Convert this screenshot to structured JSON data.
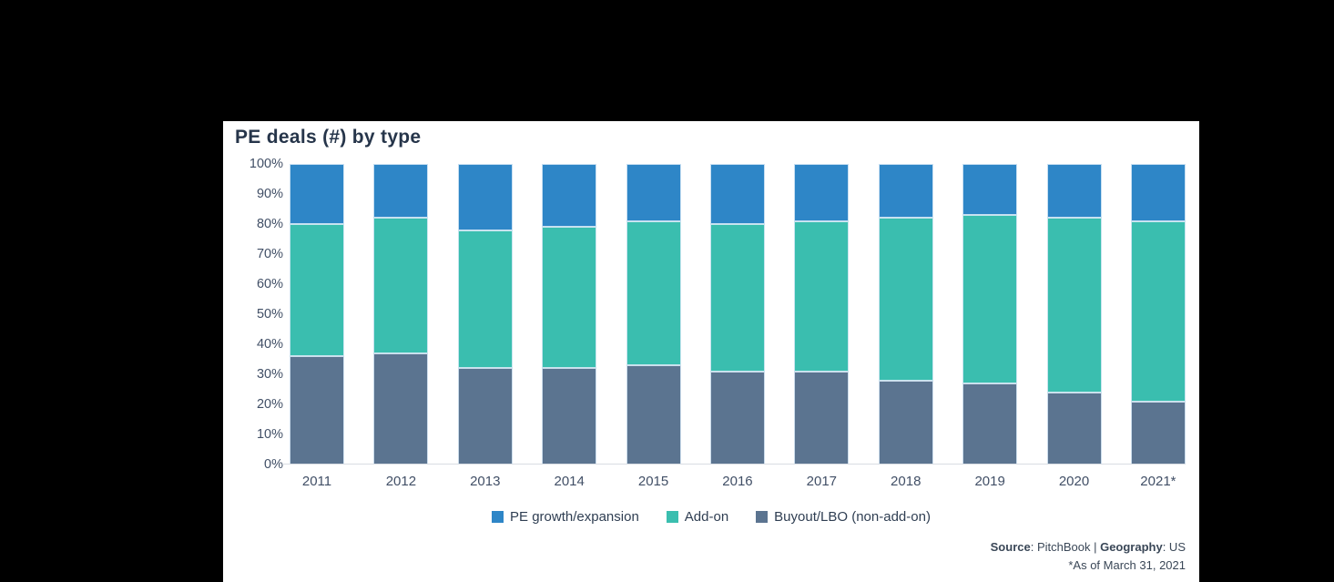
{
  "page": {
    "background_color": "#000000",
    "panel_color": "#FFFFFF"
  },
  "chart_data": {
    "type": "bar",
    "stacked": true,
    "unit": "percent",
    "title": "PE deals (#) by type",
    "categories": [
      "2011",
      "2012",
      "2013",
      "2014",
      "2015",
      "2016",
      "2017",
      "2018",
      "2019",
      "2020",
      "2021*"
    ],
    "series": [
      {
        "name": "Buyout/LBO (non-add-on)",
        "color": "#5B7490",
        "values": [
          36,
          37,
          32,
          32,
          33,
          31,
          31,
          28,
          27,
          24,
          21
        ]
      },
      {
        "name": "Add-on",
        "color": "#3ABEAF",
        "values": [
          44,
          45,
          46,
          47,
          48,
          49,
          50,
          54,
          56,
          58,
          60
        ]
      },
      {
        "name": "PE growth/expansion",
        "color": "#2E86C7",
        "values": [
          20,
          18,
          22,
          21,
          19,
          20,
          19,
          18,
          17,
          18,
          19
        ]
      }
    ],
    "xlabel": "",
    "ylabel": "",
    "ylim": [
      0,
      100
    ],
    "yticks": [
      "0%",
      "10%",
      "20%",
      "30%",
      "40%",
      "50%",
      "60%",
      "70%",
      "80%",
      "90%",
      "100%"
    ],
    "grid": false,
    "legend_position": "bottom"
  },
  "legend": [
    {
      "label": "PE growth/expansion",
      "color": "#2E86C7"
    },
    {
      "label": "Add-on",
      "color": "#3ABEAF"
    },
    {
      "label": "Buyout/LBO (non-add-on)",
      "color": "#5B7490"
    }
  ],
  "footer": {
    "source_label": "Source",
    "source_rest": ": PitchBook | ",
    "geography_label": "Geography",
    "geography_rest": ": US",
    "asof_note": "*As of March 31, 2021"
  }
}
